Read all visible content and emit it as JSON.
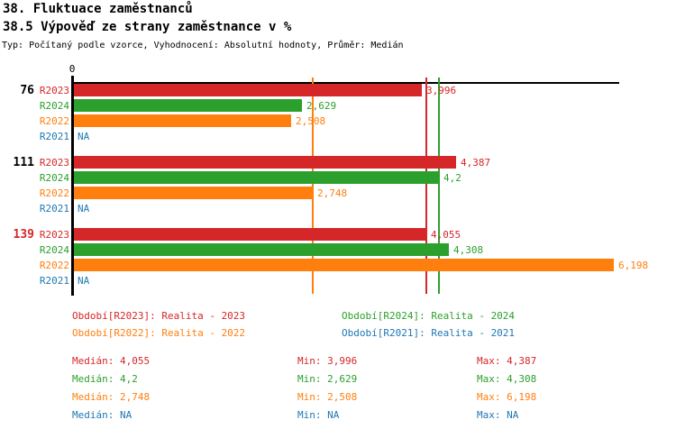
{
  "header": {
    "title": "38. Fluktuace zaměstnanců",
    "subtitle": "38.5 Výpověď ze strany zaměstnance v %",
    "meta": "Typ: Počítaný podle vzorce, Vyhodnocení: Absolutní hodnoty, Průměr: Medián"
  },
  "chart_data": {
    "type": "bar",
    "orientation": "horizontal",
    "title": "38.5 Výpověď ze strany zaměstnance v %",
    "x_axis": {
      "zero_label": "0",
      "min": 0,
      "gridlines": "median-reference-lines"
    },
    "categories": [
      "76",
      "111",
      "139"
    ],
    "series": [
      {
        "key": "R2023",
        "name": "Realita - 2023",
        "color": "#d62728",
        "values": [
          3.996,
          4.387,
          4.055
        ],
        "median": 4.055
      },
      {
        "key": "R2024",
        "name": "Realita - 2024",
        "color": "#2ca02c",
        "values": [
          2.629,
          4.2,
          4.308
        ],
        "median": 4.2
      },
      {
        "key": "R2022",
        "name": "Realita - 2022",
        "color": "#ff7f0e",
        "values": [
          2.508,
          2.748,
          6.198
        ],
        "median": 2.748
      },
      {
        "key": "R2021",
        "name": "Realita - 2021",
        "color": "#1f77b4",
        "values": [
          null,
          null,
          null
        ],
        "median": null
      }
    ],
    "groups": [
      {
        "label": "76",
        "label_color": "#000000",
        "rows": [
          {
            "series": "R2023",
            "display": "3,996"
          },
          {
            "series": "R2024",
            "display": "2,629"
          },
          {
            "series": "R2022",
            "display": "2,508"
          },
          {
            "series": "R2021",
            "display": "NA"
          }
        ]
      },
      {
        "label": "111",
        "label_color": "#000000",
        "rows": [
          {
            "series": "R2023",
            "display": "4,387"
          },
          {
            "series": "R2024",
            "display": "4,2"
          },
          {
            "series": "R2022",
            "display": "2,748"
          },
          {
            "series": "R2021",
            "display": "NA"
          }
        ]
      },
      {
        "label": "139",
        "label_color": "#d62728",
        "rows": [
          {
            "series": "R2023",
            "display": "4,055"
          },
          {
            "series": "R2024",
            "display": "4,308"
          },
          {
            "series": "R2022",
            "display": "6,198"
          },
          {
            "series": "R2021",
            "display": "NA"
          }
        ]
      }
    ]
  },
  "legend": {
    "items": [
      {
        "series": "R2023",
        "text": "Období[R2023]: Realita - 2023"
      },
      {
        "series": "R2024",
        "text": "Období[R2024]: Realita - 2024"
      },
      {
        "series": "R2022",
        "text": "Období[R2022]: Realita - 2022"
      },
      {
        "series": "R2021",
        "text": "Období[R2021]: Realita - 2021"
      }
    ]
  },
  "stats": {
    "rows": [
      {
        "series": "R2023",
        "median": "Medián: 4,055",
        "min": "Min: 3,996",
        "max": "Max: 4,387"
      },
      {
        "series": "R2024",
        "median": "Medián: 4,2",
        "min": "Min: 2,629",
        "max": "Max: 4,308"
      },
      {
        "series": "R2022",
        "median": "Medián: 2,748",
        "min": "Min: 2,508",
        "max": "Max: 6,198"
      },
      {
        "series": "R2021",
        "median": "Medián: NA",
        "min": "Min: NA",
        "max": "Max: NA"
      }
    ]
  }
}
